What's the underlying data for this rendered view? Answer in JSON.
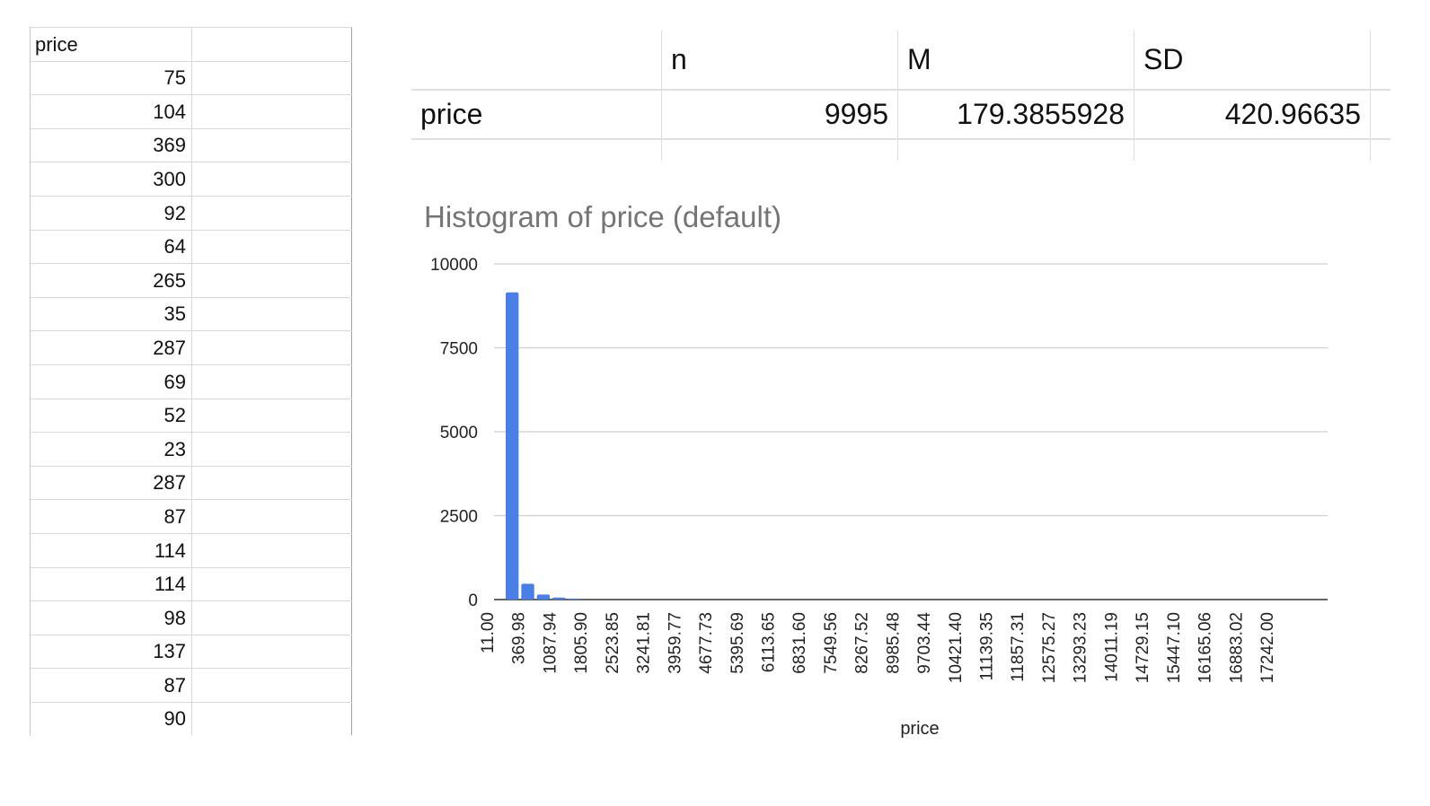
{
  "sheet": {
    "header": "price",
    "values": [
      "75",
      "104",
      "369",
      "300",
      "92",
      "64",
      "265",
      "35",
      "287",
      "69",
      "52",
      "23",
      "287",
      "87",
      "114",
      "114",
      "98",
      "137",
      "87",
      "90"
    ]
  },
  "stats_table": {
    "columns": [
      "",
      "n",
      "M",
      "SD"
    ],
    "row": {
      "label": "price",
      "n": "9995",
      "M": "179.3855928",
      "SD": "420.96635"
    }
  },
  "chart_data": {
    "type": "bar",
    "title": "Histogram of price (default)",
    "xlabel": "price",
    "ylabel": "",
    "ylim": [
      0,
      10000
    ],
    "yticks": [
      "0",
      "2500",
      "5000",
      "7500",
      "10000"
    ],
    "categories": [
      "11.00",
      "369.98",
      "1087.94",
      "1805.90",
      "2523.85",
      "3241.81",
      "3959.77",
      "4677.73",
      "5395.69",
      "6113.65",
      "6831.60",
      "7549.56",
      "8267.52",
      "8985.48",
      "9703.44",
      "10421.40",
      "11139.35",
      "11857.31",
      "12575.27",
      "13293.23",
      "14011.19",
      "14729.15",
      "15447.10",
      "16165.06",
      "16883.02",
      "17242.00"
    ],
    "bars": [
      {
        "from": "11.00",
        "to": "369.98",
        "count": 9150
      },
      {
        "from": "369.98",
        "to": "728.96",
        "count": 470
      },
      {
        "from": "728.96",
        "to": "1087.94",
        "count": 150
      },
      {
        "from": "1087.94",
        "to": "1446.92",
        "count": 60
      },
      {
        "from": "1446.92",
        "to": "1805.90",
        "count": 30
      }
    ],
    "grid": true,
    "bar_color": "#4a7fe8"
  }
}
